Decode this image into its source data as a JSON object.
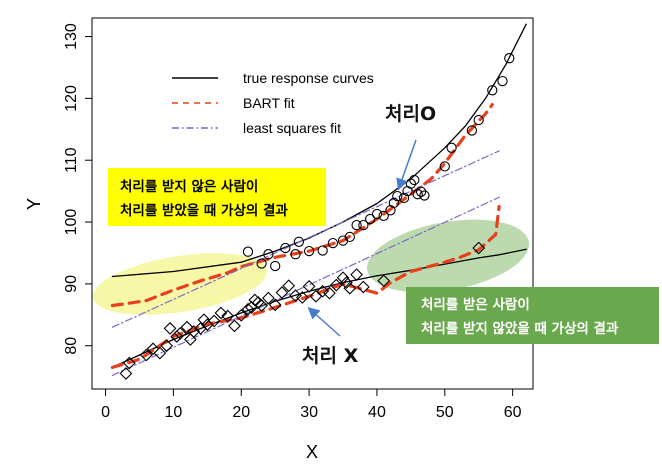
{
  "chart_data": {
    "type": "scatter",
    "xlabel": "X",
    "ylabel": "Y",
    "xlim": [
      -2,
      63
    ],
    "ylim": [
      73,
      133
    ],
    "xticks": [
      0,
      10,
      20,
      30,
      40,
      50,
      60
    ],
    "yticks": [
      80,
      90,
      100,
      110,
      120,
      130
    ],
    "legend": {
      "position": "top-left",
      "entries": [
        {
          "label": "true response curves",
          "style": "solid",
          "color": "#000000"
        },
        {
          "label": "BART fit",
          "style": "dashed",
          "color": "#e8401c"
        },
        {
          "label": "least squares fit",
          "style": "dashdot",
          "color": "#7b68c8"
        }
      ]
    },
    "series": [
      {
        "name": "true response curves",
        "kind": "line",
        "color": "#000000",
        "x": [
          1,
          5,
          10,
          15,
          20,
          25,
          30,
          35,
          40,
          45,
          50,
          55,
          58,
          62
        ],
        "y": [
          76.5,
          78.5,
          81.0,
          83.2,
          85.3,
          87.2,
          88.8,
          90.2,
          91.3,
          92.2,
          93.2,
          94.2,
          94.7,
          95.6
        ]
      },
      {
        "name": "true response curves",
        "kind": "line",
        "color": "#000000",
        "x": [
          1,
          10,
          20,
          25,
          30,
          35,
          40,
          45,
          50,
          53,
          56,
          59,
          62
        ],
        "y": [
          91.2,
          92.0,
          93.5,
          95.3,
          97.4,
          100.0,
          103.0,
          107.0,
          112.0,
          115.5,
          120.0,
          125.5,
          132.0
        ]
      },
      {
        "name": "BART fit",
        "kind": "line",
        "color": "#e8401c",
        "x": [
          1,
          5,
          10,
          15,
          20,
          25,
          30,
          35,
          40,
          42,
          45,
          50,
          52,
          55,
          57.5,
          58
        ],
        "y": [
          76.5,
          77.8,
          81.5,
          83.5,
          84.5,
          86.2,
          88.0,
          90.0,
          88.5,
          90.2,
          92.0,
          93.5,
          94.2,
          95.5,
          98.0,
          102.5
        ]
      },
      {
        "name": "BART fit",
        "kind": "line",
        "color": "#e8401c",
        "x": [
          1,
          3,
          6,
          10,
          14,
          18,
          20,
          25,
          30,
          35,
          40,
          45,
          48,
          50,
          53,
          56,
          57
        ],
        "y": [
          86.5,
          86.8,
          87.3,
          89.0,
          90.5,
          91.8,
          92.8,
          94.3,
          95.3,
          97.0,
          100.5,
          104.5,
          107.0,
          109.5,
          114.0,
          117.5,
          119.0
        ]
      },
      {
        "name": "least squares fit",
        "kind": "line",
        "color": "#7b68c8",
        "x": [
          1,
          58
        ],
        "y": [
          75.2,
          104.0
        ]
      },
      {
        "name": "least squares fit",
        "kind": "line",
        "color": "#7b68c8",
        "x": [
          1,
          58
        ],
        "y": [
          83.0,
          111.5
        ]
      },
      {
        "name": "처리O",
        "kind": "points",
        "marker": "circle",
        "x": [
          21,
          23,
          24,
          25,
          26.5,
          28,
          28.5,
          30,
          32,
          33.5,
          35,
          36,
          37,
          38,
          39,
          40,
          41,
          42,
          42.5,
          43,
          44,
          44.5,
          45,
          45.5,
          46,
          46.5,
          47,
          50,
          51,
          54,
          55,
          57,
          58.5,
          59.5
        ],
        "y": [
          95.2,
          93.3,
          94.8,
          92.9,
          95.8,
          94.8,
          96.8,
          95.3,
          95.4,
          96.6,
          97.0,
          97.6,
          99.5,
          99.5,
          100.5,
          101.3,
          101.0,
          101.9,
          103.1,
          104.2,
          103.9,
          105.0,
          106.2,
          106.8,
          104.5,
          104.9,
          104.3,
          109.0,
          112.0,
          114.8,
          116.5,
          121.3,
          122.8,
          126.5
        ]
      },
      {
        "name": "처리 X",
        "kind": "points",
        "marker": "diamond",
        "x": [
          3,
          3.5,
          6,
          7,
          8,
          9,
          9.5,
          10.5,
          11,
          12,
          12.5,
          13,
          14,
          14.5,
          15,
          16,
          17,
          18,
          19,
          20,
          21,
          21.5,
          22,
          22.5,
          23,
          24,
          25,
          26,
          27,
          28,
          29,
          30,
          31,
          32,
          33,
          34,
          35,
          35.5,
          36,
          37,
          38,
          41,
          55
        ],
        "y": [
          75.5,
          77.2,
          78.5,
          79.5,
          78.8,
          80.0,
          82.8,
          81.5,
          82.0,
          83.0,
          81.0,
          82.3,
          82.8,
          84.2,
          83.4,
          84.0,
          85.3,
          84.8,
          83.2,
          84.9,
          85.9,
          86.2,
          87.4,
          87.0,
          86.5,
          87.7,
          86.6,
          88.6,
          89.7,
          88.1,
          87.8,
          89.6,
          88.0,
          88.8,
          88.5,
          89.8,
          91.0,
          90.2,
          89.3,
          91.5,
          89.5,
          90.5,
          95.8
        ]
      }
    ],
    "annotations": {
      "treated_label": "처리O",
      "untreated_label": "처리 X",
      "note_left_line1": "처리를 받지 않은 사람이",
      "note_left_line2": "처리를 받았을 때 가상의 결과",
      "note_right_line1": "처리를 받은 사람이",
      "note_right_line2": "처리를 받지 않았을 때 가상의 결과"
    },
    "colors": {
      "note_left_bg": "#ffff00",
      "note_right_bg": "#6aa84f",
      "note_right_text": "#ffffff",
      "highlight_left": "#f2f27a",
      "highlight_right": "#93c47d",
      "arrow": "#4a7bd0"
    }
  }
}
